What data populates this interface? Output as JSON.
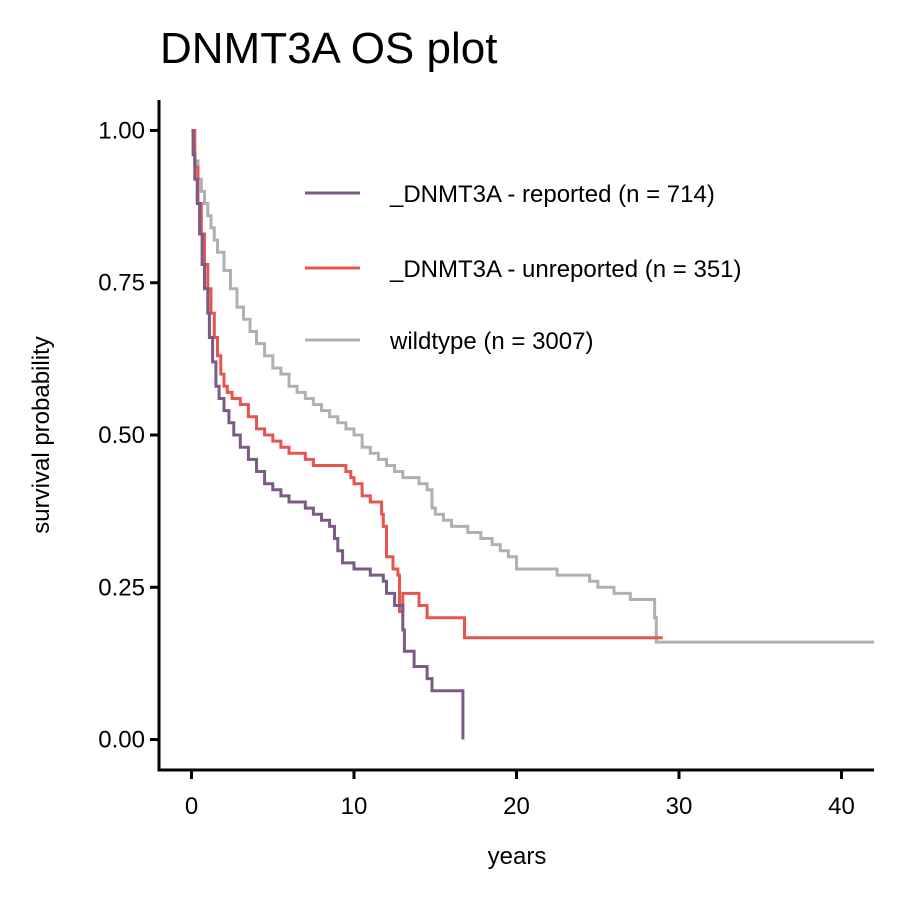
{
  "chart_data": {
    "type": "line",
    "step": true,
    "title": "DNMT3A OS plot",
    "xlabel": "years",
    "ylabel": "survival probability",
    "xlim": [
      -2,
      42
    ],
    "ylim": [
      -0.05,
      1.05
    ],
    "xticks": [
      0,
      10,
      20,
      30,
      40
    ],
    "yticks": [
      0,
      0.25,
      0.5,
      0.75,
      1.0
    ],
    "ytick_labels": [
      "0.00",
      "0.25",
      "0.50",
      "0.75",
      "1.00"
    ],
    "grid": false,
    "legend_position": "top-right",
    "series": [
      {
        "name": "_DNMT3A - reported (n = 714)",
        "color": "#7B5A84",
        "points": [
          [
            0,
            1.0
          ],
          [
            0.1,
            0.96
          ],
          [
            0.2,
            0.92
          ],
          [
            0.35,
            0.88
          ],
          [
            0.5,
            0.83
          ],
          [
            0.65,
            0.78
          ],
          [
            0.8,
            0.74
          ],
          [
            1.0,
            0.7
          ],
          [
            1.1,
            0.66
          ],
          [
            1.3,
            0.62
          ],
          [
            1.5,
            0.58
          ],
          [
            1.7,
            0.56
          ],
          [
            2.0,
            0.54
          ],
          [
            2.3,
            0.52
          ],
          [
            2.6,
            0.5
          ],
          [
            3.0,
            0.48
          ],
          [
            3.5,
            0.46
          ],
          [
            4.0,
            0.44
          ],
          [
            4.5,
            0.42
          ],
          [
            5.0,
            0.41
          ],
          [
            5.5,
            0.4
          ],
          [
            6.0,
            0.39
          ],
          [
            7.0,
            0.38
          ],
          [
            7.5,
            0.37
          ],
          [
            8.0,
            0.36
          ],
          [
            8.5,
            0.35
          ],
          [
            8.8,
            0.33
          ],
          [
            9.0,
            0.31
          ],
          [
            9.3,
            0.29
          ],
          [
            9.6,
            0.29
          ],
          [
            10.0,
            0.28
          ],
          [
            11.0,
            0.27
          ],
          [
            11.8,
            0.26
          ],
          [
            12.0,
            0.24
          ],
          [
            12.5,
            0.22
          ],
          [
            13.0,
            0.18
          ],
          [
            13.1,
            0.145
          ],
          [
            13.5,
            0.145
          ],
          [
            13.7,
            0.12
          ],
          [
            14.4,
            0.12
          ],
          [
            14.5,
            0.1
          ],
          [
            14.8,
            0.08
          ],
          [
            16.7,
            0.08
          ],
          [
            16.7,
            0.0
          ]
        ]
      },
      {
        "name": "_DNMT3A - unreported (n = 351)",
        "color": "#E8554E",
        "points": [
          [
            0,
            1.0
          ],
          [
            0.2,
            0.94
          ],
          [
            0.4,
            0.88
          ],
          [
            0.6,
            0.83
          ],
          [
            0.8,
            0.78
          ],
          [
            1.0,
            0.74
          ],
          [
            1.2,
            0.7
          ],
          [
            1.4,
            0.66
          ],
          [
            1.6,
            0.63
          ],
          [
            1.8,
            0.6
          ],
          [
            2.0,
            0.58
          ],
          [
            2.2,
            0.57
          ],
          [
            2.5,
            0.56
          ],
          [
            3.0,
            0.55
          ],
          [
            3.5,
            0.53
          ],
          [
            4.0,
            0.51
          ],
          [
            4.5,
            0.5
          ],
          [
            5.0,
            0.49
          ],
          [
            5.5,
            0.48
          ],
          [
            6.0,
            0.47
          ],
          [
            7.0,
            0.46
          ],
          [
            7.5,
            0.45
          ],
          [
            9.0,
            0.45
          ],
          [
            9.5,
            0.44
          ],
          [
            9.8,
            0.43
          ],
          [
            10.0,
            0.42
          ],
          [
            10.5,
            0.4
          ],
          [
            11.0,
            0.39
          ],
          [
            11.6,
            0.39
          ],
          [
            11.7,
            0.37
          ],
          [
            11.8,
            0.35
          ],
          [
            12.0,
            0.3
          ],
          [
            12.4,
            0.28
          ],
          [
            12.7,
            0.27
          ],
          [
            12.8,
            0.21
          ],
          [
            13.0,
            0.24
          ],
          [
            14.0,
            0.22
          ],
          [
            14.5,
            0.2
          ],
          [
            16.6,
            0.2
          ],
          [
            16.8,
            0.167
          ],
          [
            29.0,
            0.167
          ]
        ]
      },
      {
        "name": "wildtype (n = 3007)",
        "color": "#B0B0B0",
        "points": [
          [
            0,
            1.0
          ],
          [
            0.1,
            0.97
          ],
          [
            0.2,
            0.95
          ],
          [
            0.4,
            0.92
          ],
          [
            0.6,
            0.9
          ],
          [
            0.8,
            0.88
          ],
          [
            1.0,
            0.86
          ],
          [
            1.2,
            0.84
          ],
          [
            1.4,
            0.82
          ],
          [
            1.6,
            0.8
          ],
          [
            2.0,
            0.77
          ],
          [
            2.4,
            0.74
          ],
          [
            2.8,
            0.71
          ],
          [
            3.2,
            0.69
          ],
          [
            3.6,
            0.67
          ],
          [
            4.0,
            0.65
          ],
          [
            4.5,
            0.63
          ],
          [
            5.0,
            0.61
          ],
          [
            5.5,
            0.6
          ],
          [
            6.0,
            0.58
          ],
          [
            6.5,
            0.57
          ],
          [
            7.0,
            0.56
          ],
          [
            7.5,
            0.55
          ],
          [
            8.0,
            0.54
          ],
          [
            8.5,
            0.53
          ],
          [
            9.0,
            0.52
          ],
          [
            9.5,
            0.51
          ],
          [
            10.0,
            0.5
          ],
          [
            10.5,
            0.48
          ],
          [
            11.0,
            0.47
          ],
          [
            11.5,
            0.46
          ],
          [
            12.0,
            0.45
          ],
          [
            12.5,
            0.44
          ],
          [
            13.0,
            0.43
          ],
          [
            14.0,
            0.42
          ],
          [
            14.5,
            0.41
          ],
          [
            14.8,
            0.38
          ],
          [
            15.0,
            0.37
          ],
          [
            15.5,
            0.36
          ],
          [
            16.0,
            0.35
          ],
          [
            17.0,
            0.34
          ],
          [
            17.8,
            0.33
          ],
          [
            18.5,
            0.32
          ],
          [
            19.0,
            0.31
          ],
          [
            19.5,
            0.3
          ],
          [
            20.0,
            0.28
          ],
          [
            22.0,
            0.28
          ],
          [
            22.5,
            0.27
          ],
          [
            24.0,
            0.27
          ],
          [
            24.5,
            0.26
          ],
          [
            25.0,
            0.25
          ],
          [
            26.0,
            0.24
          ],
          [
            26.5,
            0.24
          ],
          [
            27.0,
            0.23
          ],
          [
            28.0,
            0.23
          ],
          [
            28.5,
            0.2
          ],
          [
            28.6,
            0.16
          ],
          [
            42.0,
            0.16
          ]
        ]
      }
    ]
  }
}
